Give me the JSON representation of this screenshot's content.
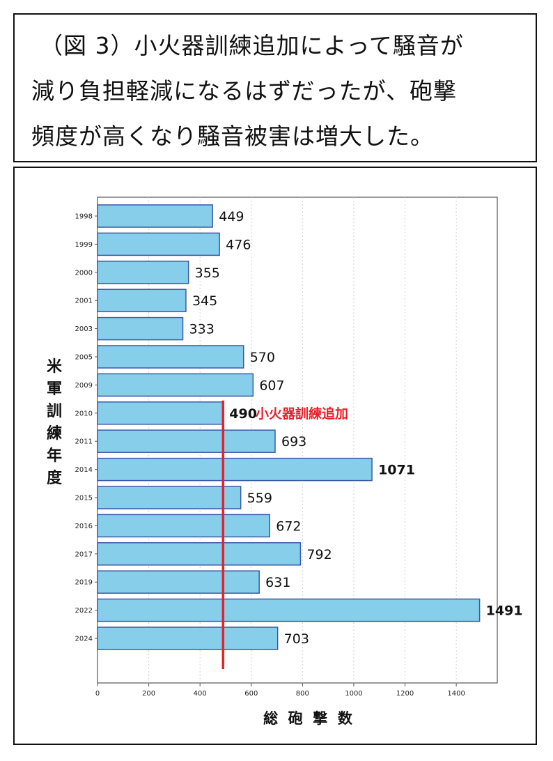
{
  "caption": {
    "lines": [
      "（図 3）小火器訓練追加によって騒音が",
      "減り負担軽減になるはずだったが、砲撃",
      "頻度が高くなり騒音被害は増大した。"
    ]
  },
  "chart_data": {
    "type": "bar",
    "orientation": "horizontal",
    "ylabel": "米軍訓練年度",
    "xlabel": "総 砲 撃 数",
    "categories": [
      "1998",
      "1999",
      "2000",
      "2001",
      "2003",
      "2005",
      "2009",
      "2010",
      "2011",
      "2014",
      "2015",
      "2016",
      "2017",
      "2019",
      "2022",
      "2024"
    ],
    "values": [
      449,
      476,
      355,
      345,
      333,
      570,
      607,
      490,
      693,
      1071,
      559,
      672,
      792,
      631,
      1491,
      703
    ],
    "value_labels": [
      "449",
      "476",
      "355",
      "345",
      "333",
      "570",
      "607",
      "490",
      "693",
      "1071",
      "559",
      "672",
      "792",
      "631",
      "1491",
      "703"
    ],
    "bold_labels": [
      "490",
      "1071",
      "1491"
    ],
    "xlim": [
      0,
      1560
    ],
    "xticks": [
      "0",
      "200",
      "400",
      "600",
      "800",
      "1000",
      "1200",
      "1400"
    ],
    "grid": "vertical dotted",
    "bar_color": "#87ceeb",
    "bar_edge_color": "#3a5aa8",
    "annotation": {
      "x": 490,
      "text": "小火器訓練追加",
      "color": "#e8212a"
    }
  }
}
